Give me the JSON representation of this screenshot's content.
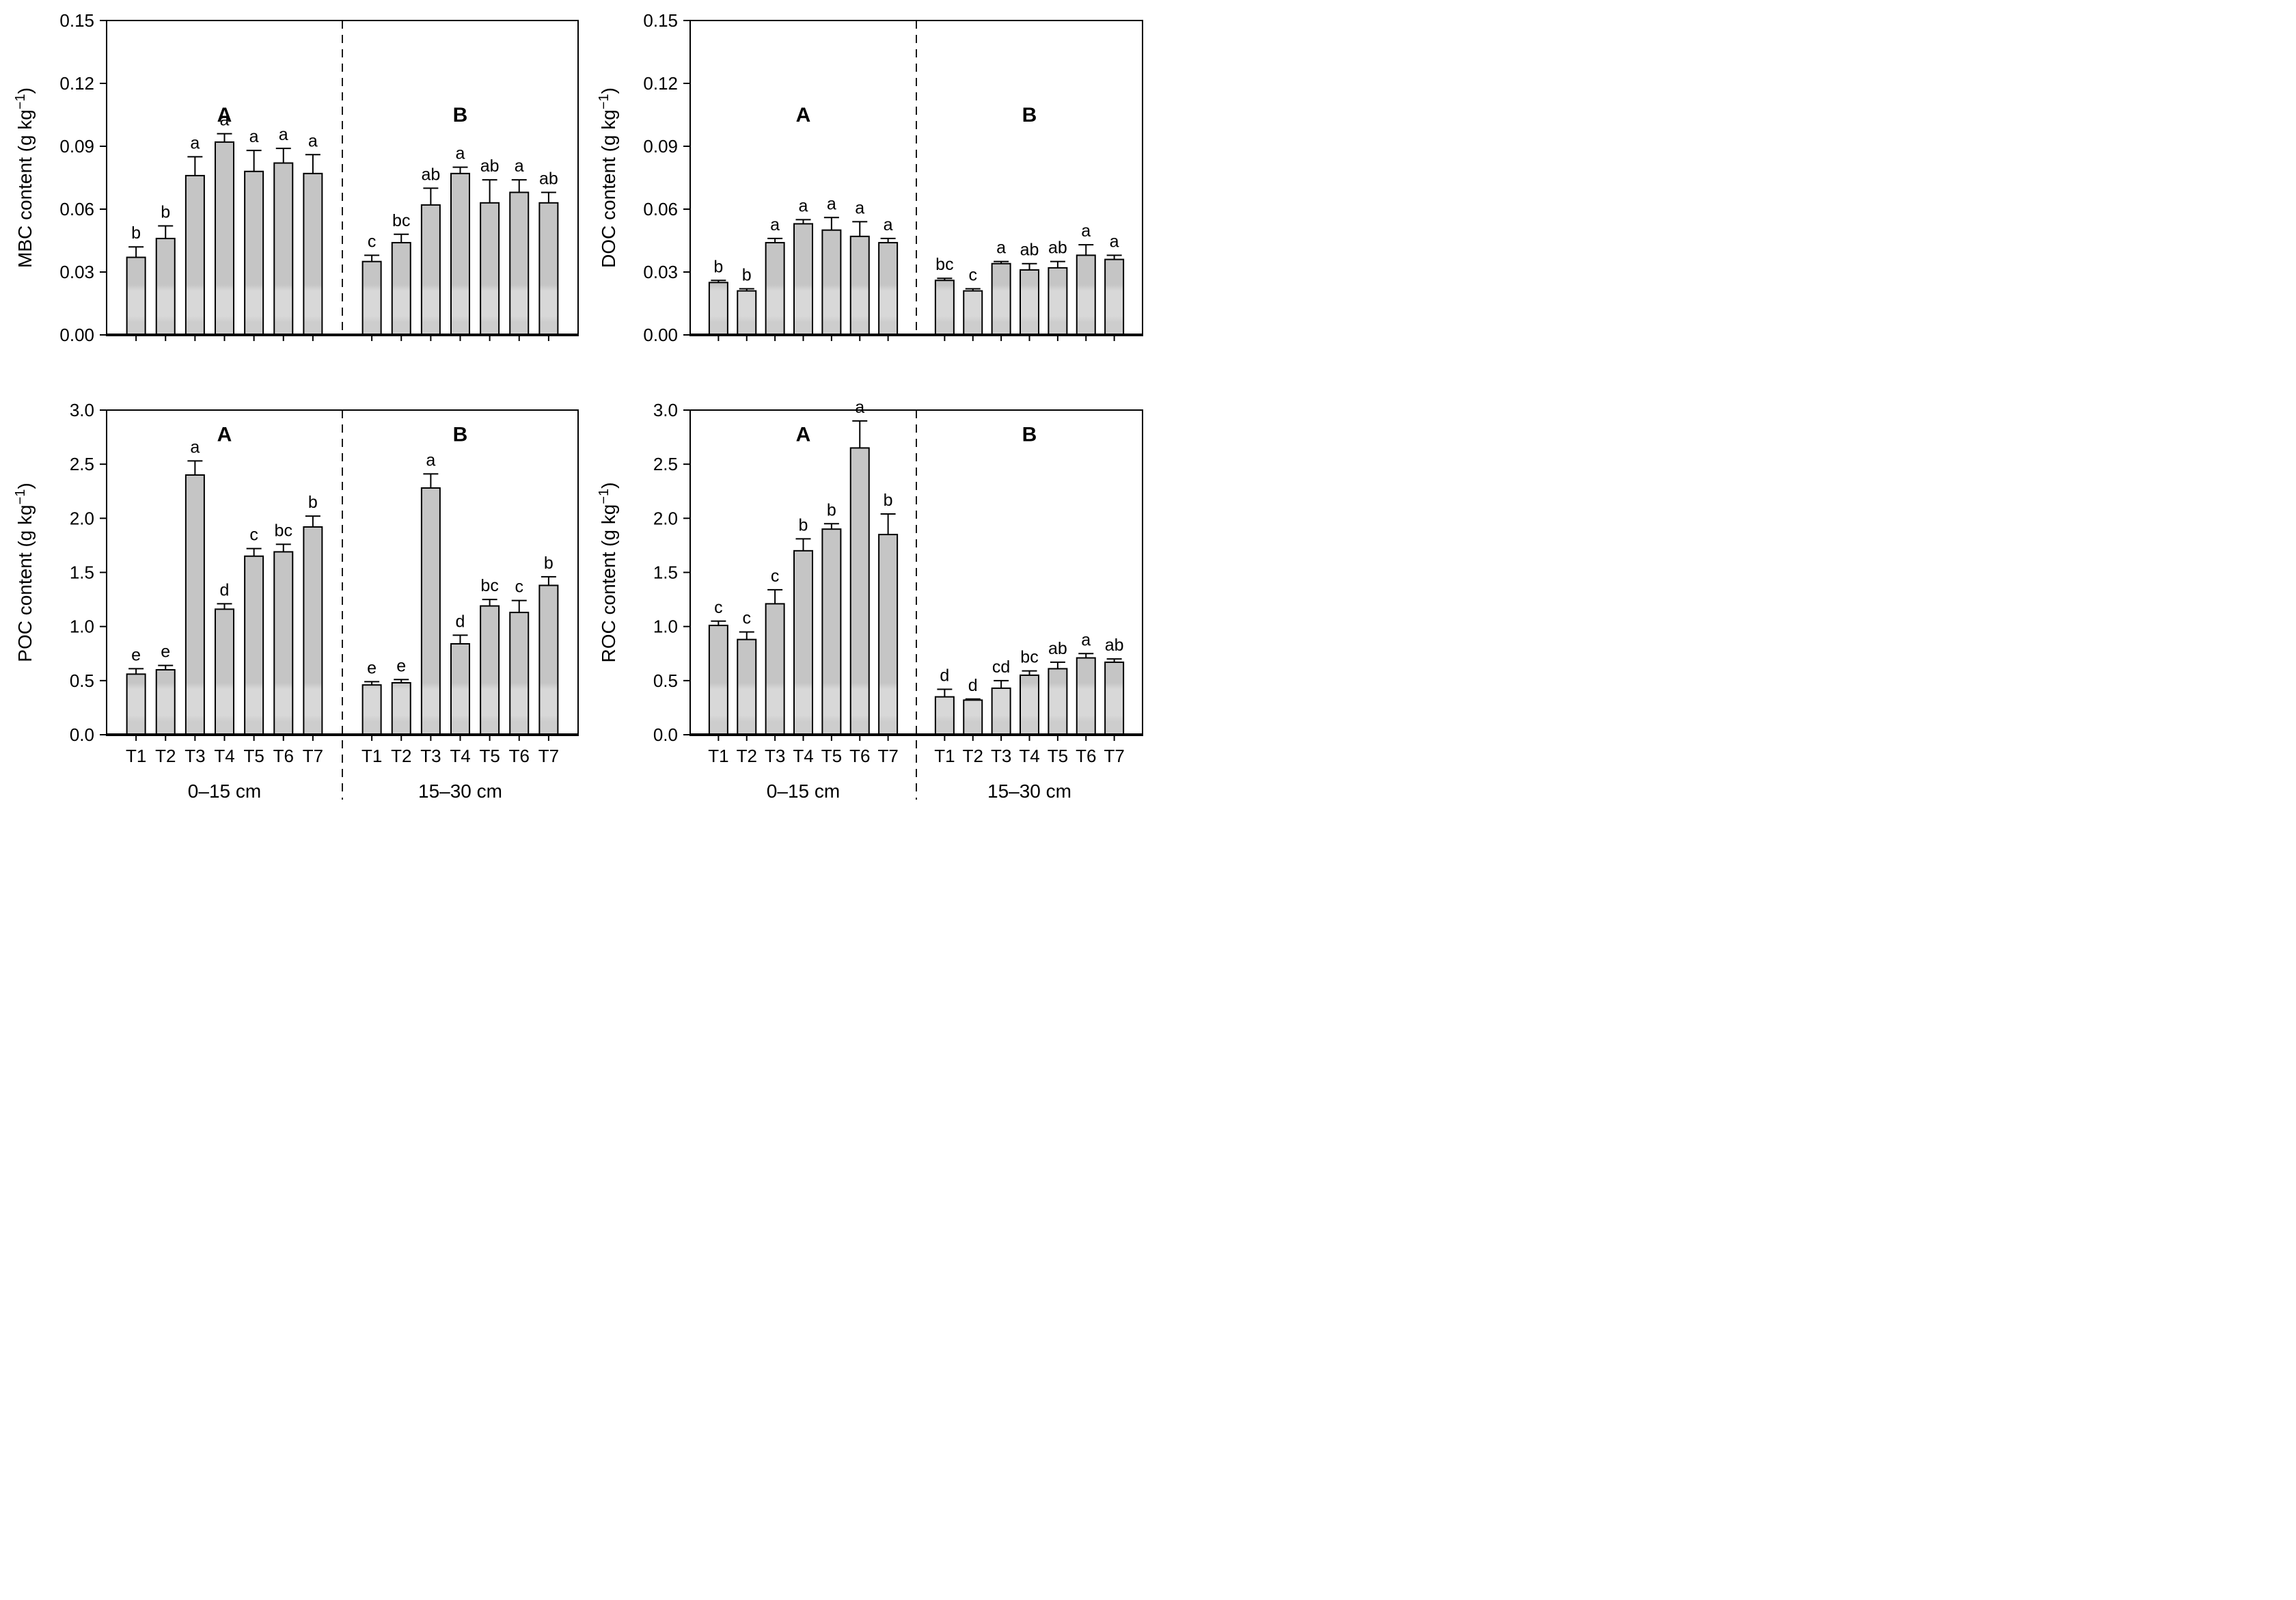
{
  "figure": {
    "description": "Four-panel bar figure of soil carbon fractions",
    "treatments": [
      "T1",
      "T2",
      "T3",
      "T4",
      "T5",
      "T6",
      "T7"
    ],
    "depth_groups": [
      "0–15 cm",
      "15–30 cm"
    ],
    "panel_letters": [
      "A",
      "B"
    ],
    "colors": {
      "background": "#ffffff",
      "bar_fill": "#c5c5c5",
      "bar_band": "#d8d8d8",
      "bar_foot": "#cdcdcd",
      "outline": "#000000",
      "text": "#000000"
    }
  },
  "chart_data": [
    {
      "id": "mbc",
      "type": "bar",
      "position": "top-left",
      "ylabel_text": "MBC content (g kg−1)",
      "ylabel_main": "MBC content (g kg",
      "ylabel_sup": "−1",
      "ylabel_close": ")",
      "ylim": [
        0,
        0.15
      ],
      "ytick_values": [
        0,
        0.03,
        0.06,
        0.09,
        0.12,
        0.15
      ],
      "ytick_labels": [
        "0.00",
        "0.03",
        "0.06",
        "0.09",
        "0.12",
        "0.15"
      ],
      "categories": [
        "T1",
        "T2",
        "T3",
        "T4",
        "T5",
        "T6",
        "T7"
      ],
      "show_x_labels": false,
      "grid": false,
      "series": [
        {
          "name": "0–15 cm",
          "panel_letter": "A",
          "values": [
            0.037,
            0.046,
            0.076,
            0.092,
            0.078,
            0.082,
            0.077
          ],
          "errors": [
            0.005,
            0.006,
            0.009,
            0.004,
            0.01,
            0.007,
            0.009
          ],
          "sig_letters": [
            "b",
            "b",
            "a",
            "a",
            "a",
            "a",
            "a"
          ]
        },
        {
          "name": "15–30 cm",
          "panel_letter": "B",
          "values": [
            0.035,
            0.044,
            0.062,
            0.077,
            0.063,
            0.068,
            0.063
          ],
          "errors": [
            0.003,
            0.004,
            0.008,
            0.003,
            0.011,
            0.006,
            0.005
          ],
          "sig_letters": [
            "c",
            "bc",
            "ab",
            "a",
            "ab",
            "a",
            "ab"
          ]
        }
      ]
    },
    {
      "id": "doc",
      "type": "bar",
      "position": "top-right",
      "ylabel_text": "DOC content (g kg−1)",
      "ylabel_main": "DOC content (g kg",
      "ylabel_sup": "−1",
      "ylabel_close": ")",
      "ylim": [
        0,
        0.15
      ],
      "ytick_values": [
        0,
        0.03,
        0.06,
        0.09,
        0.12,
        0.15
      ],
      "ytick_labels": [
        "0.00",
        "0.03",
        "0.06",
        "0.09",
        "0.12",
        "0.15"
      ],
      "categories": [
        "T1",
        "T2",
        "T3",
        "T4",
        "T5",
        "T6",
        "T7"
      ],
      "show_x_labels": false,
      "grid": false,
      "series": [
        {
          "name": "0–15 cm",
          "panel_letter": "A",
          "values": [
            0.025,
            0.021,
            0.044,
            0.053,
            0.05,
            0.047,
            0.044
          ],
          "errors": [
            0.001,
            0.001,
            0.002,
            0.002,
            0.006,
            0.007,
            0.002
          ],
          "sig_letters": [
            "b",
            "b",
            "a",
            "a",
            "a",
            "a",
            "a"
          ]
        },
        {
          "name": "15–30 cm",
          "panel_letter": "B",
          "values": [
            0.026,
            0.021,
            0.034,
            0.031,
            0.032,
            0.038,
            0.036
          ],
          "errors": [
            0.001,
            0.001,
            0.001,
            0.003,
            0.003,
            0.005,
            0.002
          ],
          "sig_letters": [
            "bc",
            "c",
            "a",
            "ab",
            "ab",
            "a",
            "a"
          ]
        }
      ]
    },
    {
      "id": "poc",
      "type": "bar",
      "position": "bottom-left",
      "ylabel_text": "POC content (g kg−1)",
      "ylabel_main": "POC content (g kg",
      "ylabel_sup": "−1",
      "ylabel_close": ")",
      "ylim": [
        0,
        3.0
      ],
      "ytick_values": [
        0,
        0.5,
        1.0,
        1.5,
        2.0,
        2.5,
        3.0
      ],
      "ytick_labels": [
        "0.0",
        "0.5",
        "1.0",
        "1.5",
        "2.0",
        "2.5",
        "3.0"
      ],
      "categories": [
        "T1",
        "T2",
        "T3",
        "T4",
        "T5",
        "T6",
        "T7"
      ],
      "show_x_labels": true,
      "grid": false,
      "series": [
        {
          "name": "0–15 cm",
          "panel_letter": "A",
          "values": [
            0.56,
            0.6,
            2.4,
            1.16,
            1.65,
            1.69,
            1.92
          ],
          "errors": [
            0.05,
            0.04,
            0.13,
            0.05,
            0.07,
            0.07,
            0.1
          ],
          "sig_letters": [
            "e",
            "e",
            "a",
            "d",
            "c",
            "bc",
            "b"
          ]
        },
        {
          "name": "15–30 cm",
          "panel_letter": "B",
          "values": [
            0.46,
            0.48,
            2.28,
            0.84,
            1.19,
            1.13,
            1.38
          ],
          "errors": [
            0.03,
            0.03,
            0.13,
            0.08,
            0.06,
            0.11,
            0.08
          ],
          "sig_letters": [
            "e",
            "e",
            "a",
            "d",
            "bc",
            "c",
            "b"
          ]
        }
      ]
    },
    {
      "id": "roc",
      "type": "bar",
      "position": "bottom-right",
      "ylabel_text": "ROC content (g kg−1)",
      "ylabel_main": "ROC content (g kg",
      "ylabel_sup": "−1",
      "ylabel_close": ")",
      "ylim": [
        0,
        3.0
      ],
      "ytick_values": [
        0,
        0.5,
        1.0,
        1.5,
        2.0,
        2.5,
        3.0
      ],
      "ytick_labels": [
        "0.0",
        "0.5",
        "1.0",
        "1.5",
        "2.0",
        "2.5",
        "3.0"
      ],
      "categories": [
        "T1",
        "T2",
        "T3",
        "T4",
        "T5",
        "T6",
        "T7"
      ],
      "show_x_labels": true,
      "grid": false,
      "series": [
        {
          "name": "0–15 cm",
          "panel_letter": "A",
          "values": [
            1.01,
            0.88,
            1.21,
            1.7,
            1.9,
            2.65,
            1.85
          ],
          "errors": [
            0.04,
            0.07,
            0.13,
            0.11,
            0.05,
            0.25,
            0.19
          ],
          "sig_letters": [
            "c",
            "c",
            "c",
            "b",
            "b",
            "a",
            "b"
          ]
        },
        {
          "name": "15–30 cm",
          "panel_letter": "B",
          "values": [
            0.35,
            0.32,
            0.43,
            0.55,
            0.61,
            0.71,
            0.67
          ],
          "errors": [
            0.07,
            0.01,
            0.07,
            0.04,
            0.06,
            0.04,
            0.03
          ],
          "sig_letters": [
            "d",
            "d",
            "cd",
            "bc",
            "ab",
            "a",
            "ab"
          ]
        }
      ]
    }
  ]
}
